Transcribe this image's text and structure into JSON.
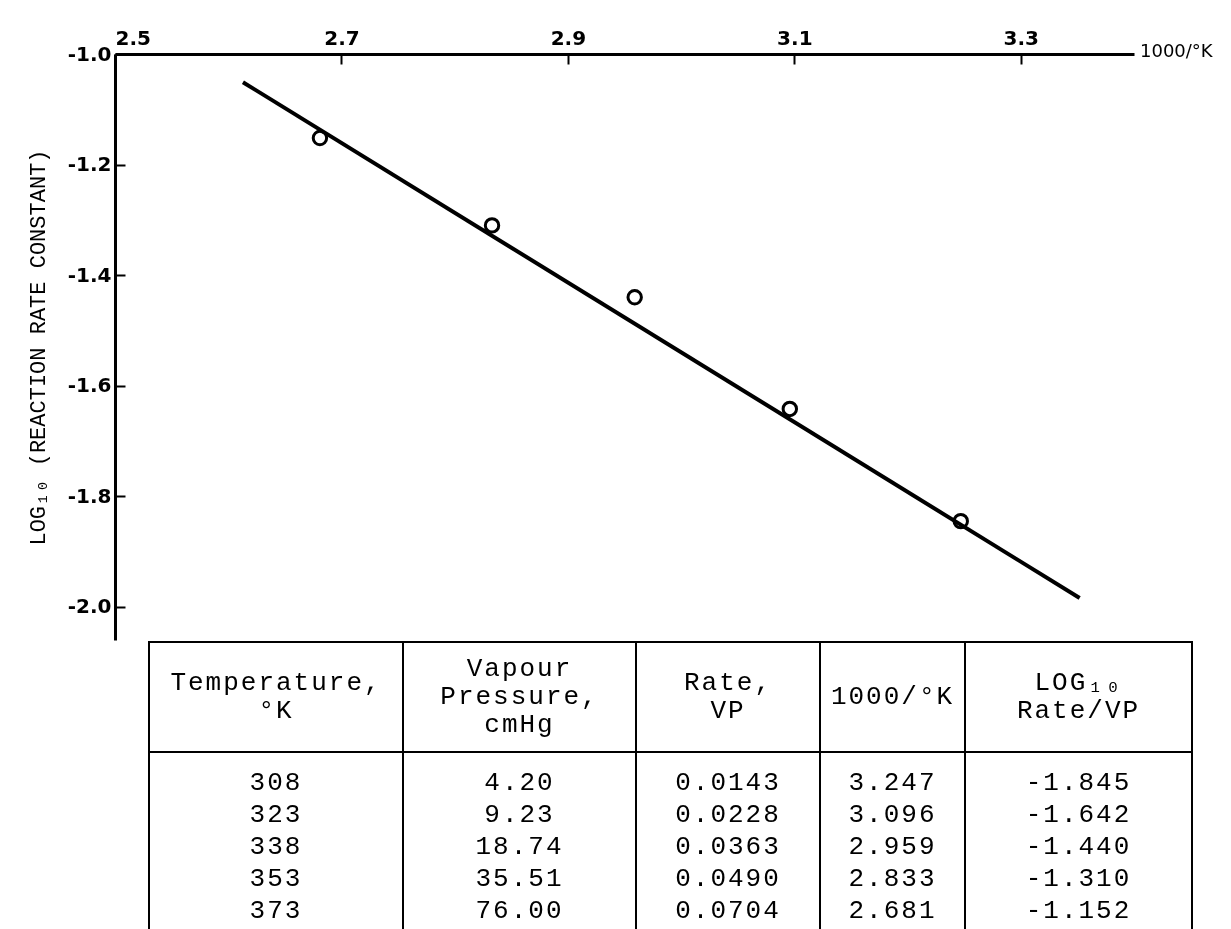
{
  "chart_data": {
    "type": "scatter",
    "xlabel": "1000/°K",
    "ylabel": "LOG₁₀ (REACTION RATE CONSTANT)",
    "x": [
      3.247,
      3.096,
      2.959,
      2.833,
      2.681
    ],
    "xlim": [
      2.5,
      3.4
    ],
    "xticks": [
      2.5,
      2.7,
      2.9,
      3.1,
      3.3
    ],
    "ylim": [
      -2.06,
      -1.0
    ],
    "yticks": [
      {
        "value": -1.0,
        "label": "-1.0"
      },
      -1.2,
      -1.4,
      -1.6,
      -1.8,
      {
        "value": -2.0,
        "label": "-2.0"
      }
    ],
    "grid": false,
    "series": [
      {
        "type": "scatter",
        "marker": "circle",
        "color": "#000000",
        "values": [
          -1.845,
          -1.642,
          -1.44,
          -1.31,
          -1.152
        ]
      },
      {
        "type": "line",
        "marker": "none",
        "color": "#000000",
        "x": [
          2.613,
          3.352
        ],
        "values": [
          -1.051,
          -1.984
        ]
      }
    ],
    "annotations": [
      "Temperature,\n°K",
      "Vapour\nPressure,\ncmHg",
      "Rate,\nVP",
      "1000/°K",
      "LOG₁₀\nRate/VP",
      "308",
      "4.20",
      "0.0143",
      "3.247",
      "-1.845",
      "323",
      "9.23",
      "0.0228",
      "3.096",
      "-1.642",
      "338",
      "18.74",
      "0.0363",
      "2.959",
      "-1.440",
      "353",
      "35.51",
      "0.0490",
      "2.833",
      "-1.310",
      "373",
      "76.00",
      "0.0704",
      "2.681",
      "-1.152"
    ]
  }
}
